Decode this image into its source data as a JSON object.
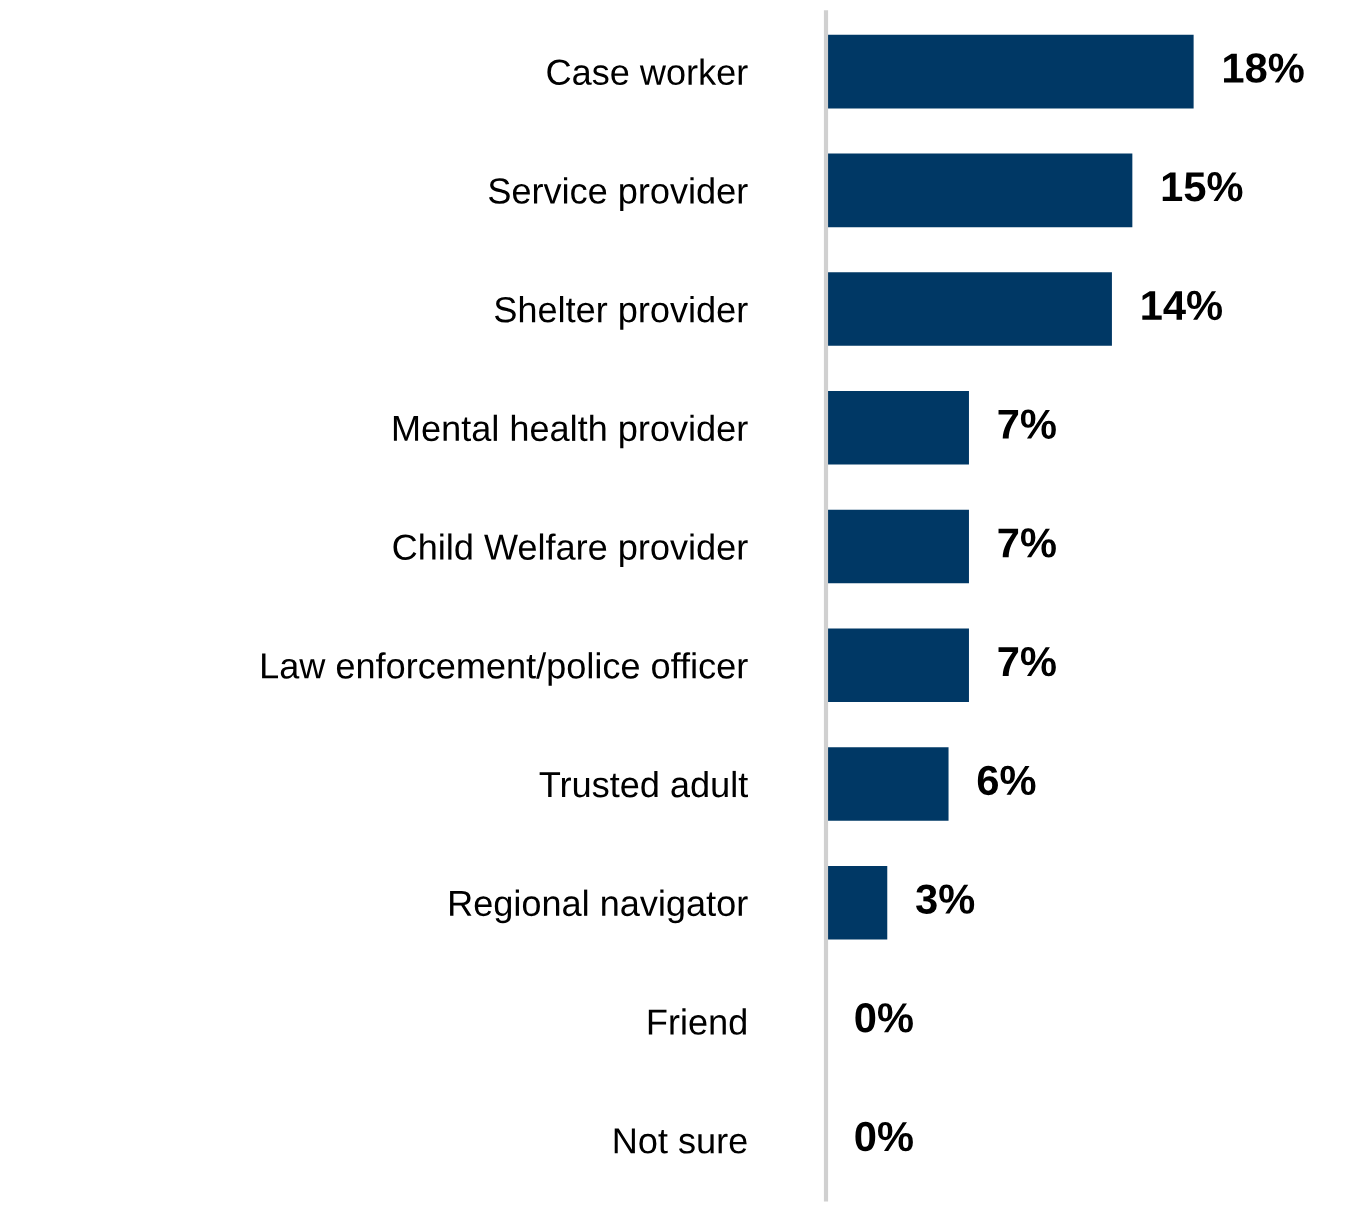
{
  "chart_data": {
    "type": "bar",
    "orientation": "horizontal",
    "categories": [
      "Case worker",
      "Service provider",
      "Shelter provider",
      "Mental health provider",
      "Child Welfare provider",
      "Law enforcement/police officer",
      "Trusted adult",
      "Regional navigator",
      "Friend",
      "Not sure"
    ],
    "values": [
      18,
      15,
      14,
      7,
      7,
      7,
      6,
      3,
      0,
      0
    ],
    "value_labels": [
      "18%",
      "15%",
      "14%",
      "7%",
      "7%",
      "7%",
      "6%",
      "3%",
      "0%",
      "0%"
    ],
    "color": "#003865",
    "grid": false,
    "legend": false
  }
}
